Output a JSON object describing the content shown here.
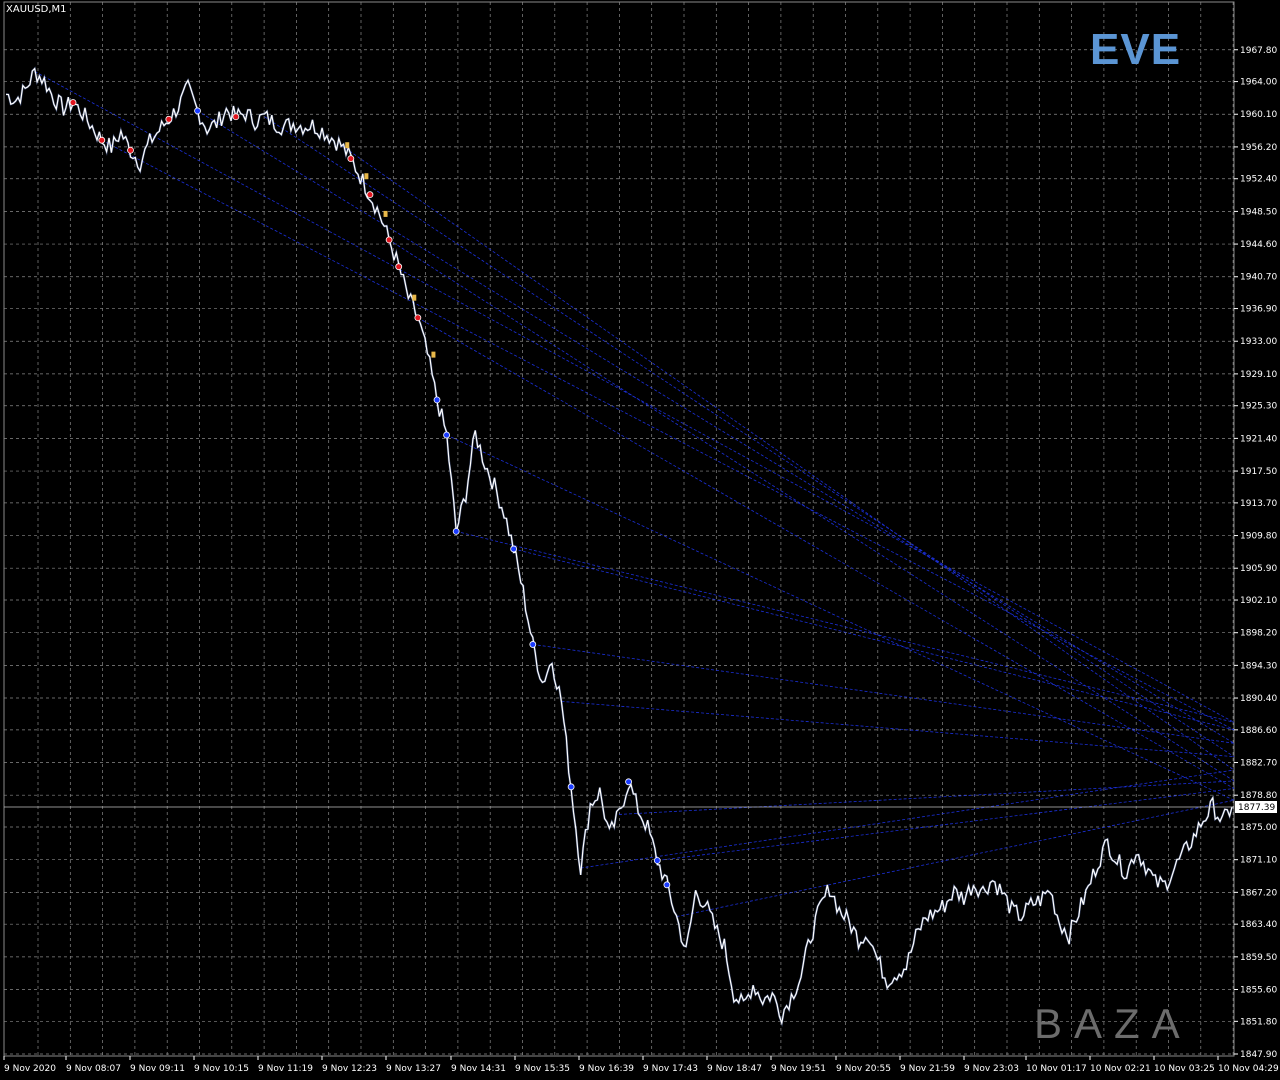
{
  "symbol_label": "XAUUSD,M1",
  "logos": {
    "top": "EVE",
    "bottom": "BAZA"
  },
  "colors": {
    "background": "#000000",
    "grid": "#8a8a8a",
    "price": "#ffffff",
    "projection_lines": "#1b2fd6",
    "sell_marker": "#e0151f",
    "buy_marker": "#1a3bff",
    "entry_marker": "#e8b84a",
    "current_price_line": "#c0c0c0"
  },
  "chart_data": {
    "type": "line",
    "symbol": "XAUUSD",
    "timeframe": "M1",
    "ylim": [
      1847.9,
      1969.8
    ],
    "y_ticks": [
      1967.8,
      1964.0,
      1960.1,
      1956.2,
      1952.4,
      1948.5,
      1944.6,
      1940.7,
      1936.9,
      1933.0,
      1929.1,
      1925.3,
      1921.4,
      1917.5,
      1913.7,
      1909.8,
      1905.9,
      1902.1,
      1898.2,
      1894.3,
      1890.4,
      1886.6,
      1882.7,
      1878.8,
      1875.0,
      1871.1,
      1867.2,
      1863.4,
      1859.5,
      1855.6,
      1851.8,
      1847.9
    ],
    "y_tick_labels": [
      "1967.80",
      "1964.00",
      "1960.10",
      "1956.20",
      "1952.40",
      "1948.50",
      "1944.60",
      "1940.70",
      "1936.90",
      "1933.00",
      "1929.10",
      "1925.30",
      "1921.40",
      "1917.50",
      "1913.70",
      "1909.80",
      "1905.90",
      "1902.10",
      "1898.20",
      "1894.30",
      "1890.40",
      "1886.60",
      "1882.70",
      "1878.80",
      "1875.00",
      "1871.10",
      "1867.20",
      "1863.40",
      "1859.50",
      "1855.60",
      "1851.80",
      "1847.90"
    ],
    "x_tick_labels": [
      "9 Nov 2020",
      "9 Nov 08:07",
      "9 Nov 09:11",
      "9 Nov 10:15",
      "9 Nov 11:19",
      "9 Nov 12:23",
      "9 Nov 13:27",
      "9 Nov 14:31",
      "9 Nov 15:35",
      "9 Nov 16:39",
      "9 Nov 17:43",
      "9 Nov 18:47",
      "9 Nov 19:51",
      "9 Nov 20:55",
      "9 Nov 21:59",
      "9 Nov 23:03",
      "10 Nov 01:17",
      "10 Nov 02:21",
      "10 Nov 03:25",
      "10 Nov 04:29"
    ],
    "current_price": 1877.39,
    "current_price_label": "1877.39",
    "series": [
      {
        "values": [
          1962.5,
          1961.8,
          1963.0,
          1965.2,
          1964.1,
          1962.0,
          1960.8,
          1961.5,
          1960.2,
          1958.6,
          1957.0,
          1956.1,
          1957.9,
          1955.8,
          1954.3,
          1956.8,
          1958.2,
          1959.5,
          1961.0,
          1963.2,
          1960.5,
          1958.4,
          1959.0,
          1960.6,
          1959.8,
          1960.2,
          1959.3,
          1959.8,
          1959.1,
          1958.6,
          1959.0,
          1958.7,
          1958.8,
          1958.2,
          1957.3,
          1956.4,
          1954.8,
          1952.7,
          1950.5,
          1948.2,
          1945.1,
          1941.9,
          1938.2,
          1935.8,
          1931.4,
          1926.0,
          1921.8,
          1910.3,
          1914.8,
          1922.0,
          1918.4,
          1915.7,
          1912.6,
          1908.2,
          1903.1,
          1896.8,
          1892.3,
          1894.9,
          1890.0,
          1879.8,
          1870.1,
          1877.7,
          1879.2,
          1874.0,
          1876.5,
          1880.4,
          1877.1,
          1874.9,
          1871.0,
          1868.1,
          1864.3,
          1860.0,
          1867.2,
          1865.9,
          1863.0,
          1860.8,
          1855.1,
          1853.6,
          1856.2,
          1854.4,
          1855.0,
          1852.7,
          1854.8,
          1857.2,
          1861.9,
          1865.3,
          1867.8,
          1865.1,
          1863.7,
          1861.6,
          1862.4,
          1859.1,
          1856.7,
          1857.6,
          1858.4,
          1861.9,
          1864.2,
          1864.8,
          1865.7,
          1867.3,
          1866.6,
          1868.2,
          1867.4,
          1868.7,
          1867.2,
          1865.1,
          1864.3,
          1865.7,
          1866.3,
          1867.5,
          1863.6,
          1862.1,
          1864.9,
          1867.7,
          1870.8,
          1873.2,
          1871.0,
          1869.5,
          1872.2,
          1870.4,
          1868.3,
          1868.1,
          1870.1,
          1871.9,
          1873.8,
          1875.9,
          1877.5,
          1875.6,
          1877.4
        ]
      }
    ]
  }
}
